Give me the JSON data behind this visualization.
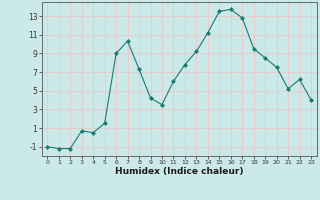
{
  "x": [
    0,
    1,
    2,
    3,
    4,
    5,
    6,
    7,
    8,
    9,
    10,
    11,
    12,
    13,
    14,
    15,
    16,
    17,
    18,
    19,
    20,
    21,
    22,
    23
  ],
  "y": [
    -1,
    -1.2,
    -1.2,
    0.7,
    0.5,
    1.5,
    9.0,
    10.3,
    7.3,
    4.2,
    3.5,
    6.0,
    7.8,
    9.2,
    11.2,
    13.5,
    13.7,
    12.8,
    9.5,
    8.5,
    7.5,
    5.2,
    6.2,
    4.0
  ],
  "line_color": "#1a7a6e",
  "marker": "D",
  "marker_size": 2.0,
  "bg_color": "#cce9ea",
  "grid_color": "#e8c8c8",
  "xlabel": "Humidex (Indice chaleur)",
  "xlim": [
    -0.5,
    23.5
  ],
  "ylim": [
    -2,
    14.5
  ],
  "yticks": [
    -1,
    1,
    3,
    5,
    7,
    9,
    11,
    13
  ],
  "xticks": [
    0,
    1,
    2,
    3,
    4,
    5,
    6,
    7,
    8,
    9,
    10,
    11,
    12,
    13,
    14,
    15,
    16,
    17,
    18,
    19,
    20,
    21,
    22,
    23
  ],
  "xtick_labels": [
    "0",
    "1",
    "2",
    "3",
    "4",
    "5",
    "6",
    "7",
    "8",
    "9",
    "10",
    "11",
    "12",
    "13",
    "14",
    "15",
    "16",
    "17",
    "18",
    "19",
    "20",
    "21",
    "22",
    "23"
  ]
}
